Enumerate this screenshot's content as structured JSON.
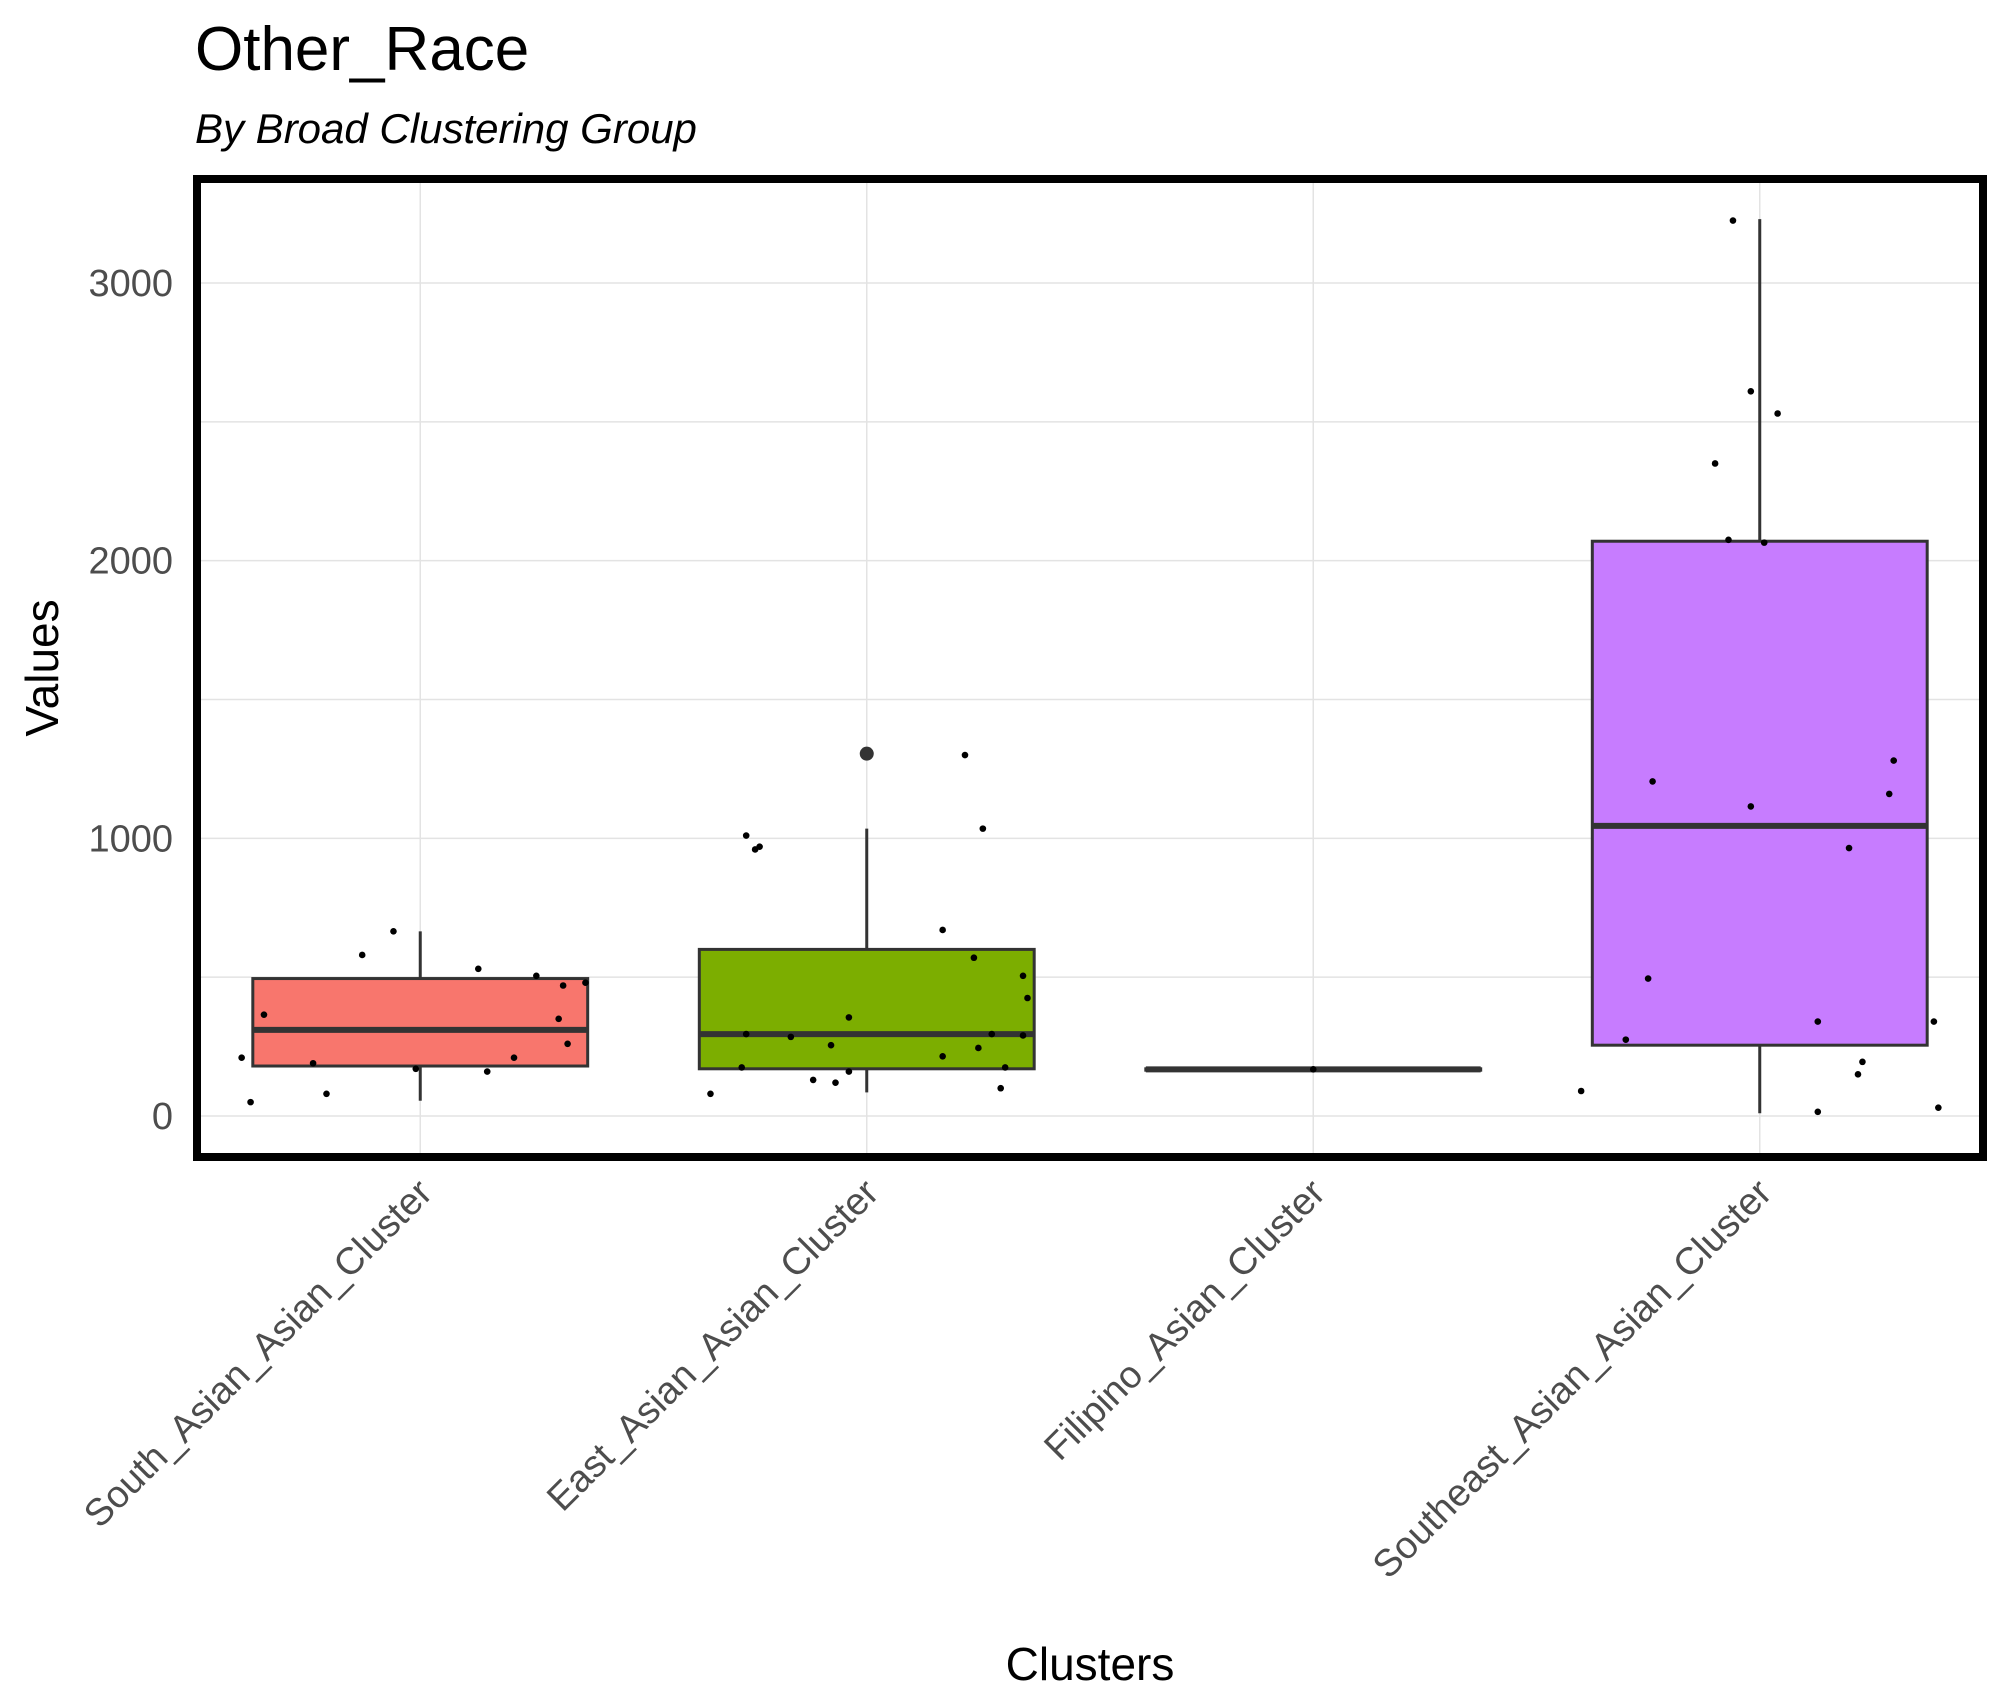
{
  "chart_data": {
    "type": "box",
    "title": "Other_Race",
    "subtitle": "By Broad Clustering Group",
    "xlabel": "Clusters",
    "ylabel": "Values",
    "ylim": [
      -140,
      3360
    ],
    "yticks": [
      0,
      1000,
      2000,
      3000
    ],
    "grid": true,
    "legend": "none",
    "categories": [
      "South_Asian_Asian_Cluster",
      "East_Asian_Asian_Cluster",
      "Filipino_Asian_Cluster",
      "Southeast_Asian_Asian_Cluster"
    ],
    "colors": [
      "#F8766D",
      "#7CAE00",
      "#00BFC4",
      "#C77CFF"
    ],
    "boxes": [
      {
        "q1": 180,
        "median": 310,
        "q3": 495,
        "whisker_low": 55,
        "whisker_high": 665,
        "outliers": []
      },
      {
        "q1": 170,
        "median": 295,
        "q3": 600,
        "whisker_low": 85,
        "whisker_high": 1035,
        "outliers": [
          1305
        ]
      },
      {
        "q1": 165,
        "median": 168,
        "q3": 170,
        "whisker_low": 165,
        "whisker_high": 170,
        "outliers": []
      },
      {
        "q1": 255,
        "median": 1045,
        "q3": 2070,
        "whisker_low": 10,
        "whisker_high": 3230,
        "outliers": []
      }
    ],
    "points": [
      [
        [
          -0.4,
          210
        ],
        [
          -0.38,
          50
        ],
        [
          -0.35,
          365
        ],
        [
          -0.24,
          190
        ],
        [
          -0.21,
          80
        ],
        [
          -0.13,
          580
        ],
        [
          -0.06,
          665
        ],
        [
          -0.01,
          170
        ],
        [
          0.13,
          530
        ],
        [
          0.15,
          160
        ],
        [
          0.21,
          210
        ],
        [
          0.26,
          505
        ],
        [
          0.31,
          350
        ],
        [
          0.32,
          470
        ],
        [
          0.33,
          260
        ],
        [
          0.37,
          480
        ]
      ],
      [
        [
          -0.35,
          80
        ],
        [
          -0.28,
          175
        ],
        [
          -0.27,
          1010
        ],
        [
          -0.25,
          960
        ],
        [
          -0.24,
          970
        ],
        [
          -0.27,
          295
        ],
        [
          -0.17,
          285
        ],
        [
          -0.12,
          130
        ],
        [
          -0.08,
          255
        ],
        [
          -0.07,
          120
        ],
        [
          -0.04,
          160
        ],
        [
          -0.04,
          355
        ],
        [
          0.17,
          670
        ],
        [
          0.17,
          215
        ],
        [
          0.22,
          1300
        ],
        [
          0.24,
          570
        ],
        [
          0.25,
          245
        ],
        [
          0.26,
          1035
        ],
        [
          0.28,
          295
        ],
        [
          0.3,
          100
        ],
        [
          0.31,
          175
        ],
        [
          0.35,
          290
        ],
        [
          0.35,
          505
        ],
        [
          0.36,
          425
        ]
      ],
      [
        [
          0.0,
          168
        ]
      ],
      [
        [
          -0.4,
          90
        ],
        [
          -0.3,
          275
        ],
        [
          -0.25,
          495
        ],
        [
          -0.24,
          1205
        ],
        [
          -0.1,
          2350
        ],
        [
          -0.07,
          2075
        ],
        [
          -0.06,
          3225
        ],
        [
          -0.02,
          2610
        ],
        [
          -0.02,
          1115
        ],
        [
          0.01,
          2065
        ],
        [
          0.04,
          2530
        ],
        [
          0.13,
          340
        ],
        [
          0.13,
          15
        ],
        [
          0.2,
          965
        ],
        [
          0.22,
          150
        ],
        [
          0.23,
          195
        ],
        [
          0.29,
          1160
        ],
        [
          0.3,
          1280
        ],
        [
          0.39,
          340
        ],
        [
          0.4,
          30
        ]
      ]
    ]
  }
}
